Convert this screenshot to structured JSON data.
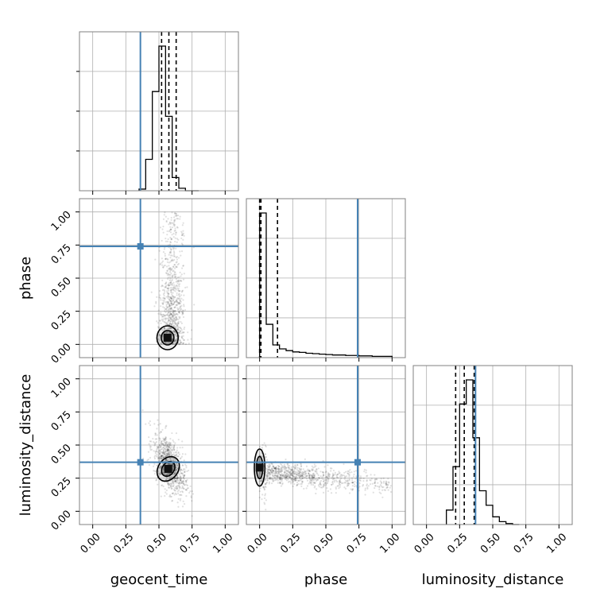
{
  "chart_data": {
    "type": "corner",
    "params": [
      "geocent_time",
      "phase",
      "luminosity_distance"
    ],
    "axis_labels": {
      "x": [
        "geocent_time",
        "phase",
        "luminosity_distance"
      ],
      "y": [
        "phase",
        "luminosity_distance"
      ]
    },
    "axis_range": [
      -0.1,
      1.1
    ],
    "ticks": [
      0.0,
      0.25,
      0.5,
      0.75,
      1.0
    ],
    "tick_labels": [
      "0.00",
      "0.25",
      "0.50",
      "0.75",
      "1.00"
    ],
    "truths": {
      "geocent_time": 0.36,
      "phase": 0.74,
      "luminosity_distance": 0.37
    },
    "quantiles_dashed": {
      "geocent_time": [
        0.52,
        0.575,
        0.63
      ],
      "phase": [
        0.0,
        0.01,
        0.135
      ],
      "luminosity_distance": [
        0.22,
        0.285,
        0.36
      ]
    },
    "histograms": {
      "geocent_time": {
        "edges": [
          0.35,
          0.4,
          0.45,
          0.5,
          0.55,
          0.6,
          0.65,
          0.7,
          0.75,
          0.8
        ],
        "counts": [
          2,
          38,
          120,
          175,
          90,
          16,
          3,
          0,
          0
        ]
      },
      "phase": {
        "edges": [
          0.0,
          0.05,
          0.1,
          0.15,
          0.2,
          0.25,
          0.3,
          0.35,
          0.4,
          0.45,
          0.5,
          0.55,
          0.6,
          0.65,
          0.7,
          0.75,
          0.8,
          0.85,
          0.9,
          0.95,
          1.0
        ],
        "counts": [
          330,
          76,
          29,
          20,
          16,
          13,
          12,
          10,
          9,
          8,
          7,
          6,
          6,
          5,
          5,
          4,
          4,
          3,
          3,
          3
        ]
      },
      "luminosity_distance": {
        "edges": [
          0.15,
          0.2,
          0.25,
          0.3,
          0.35,
          0.4,
          0.45,
          0.5,
          0.55,
          0.6,
          0.65,
          0.7
        ],
        "counts": [
          15,
          60,
          125,
          150,
          90,
          35,
          20,
          8,
          3,
          1,
          0
        ]
      }
    },
    "scatter": {
      "phase_vs_geocent_time": {
        "center": [
          0.6,
          0.3
        ],
        "spread": [
          0.05,
          0.3
        ]
      },
      "luminosity_distance_vs_geocent_time": {
        "center": [
          0.58,
          0.35
        ],
        "spread": [
          0.06,
          0.1
        ]
      },
      "luminosity_distance_vs_phase": {
        "center": [
          0.3,
          0.25
        ],
        "spread": [
          0.3,
          0.08
        ]
      }
    },
    "grid": true
  },
  "colors": {
    "truth": "#4682b4",
    "hist_line": "#000000",
    "grid": "#b0b0b0",
    "frame": "#808080",
    "scatter": "#000000"
  }
}
